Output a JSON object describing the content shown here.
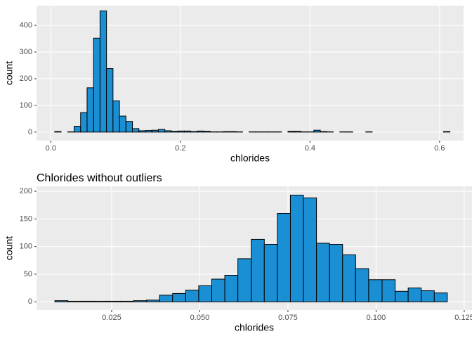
{
  "chart_data": [
    {
      "type": "histogram",
      "x_label": "chlorides",
      "y_label": "count",
      "color": "#1b8fd3",
      "edge_color": "#000000",
      "grid": true,
      "bins": [
        0.006,
        0.016,
        0.026,
        0.036,
        0.046,
        0.056,
        0.066,
        0.076,
        0.086,
        0.096,
        0.106,
        0.116,
        0.126,
        0.136,
        0.146,
        0.156,
        0.166,
        0.176,
        0.186,
        0.196,
        0.206,
        0.216,
        0.226,
        0.236,
        0.246,
        0.256,
        0.266,
        0.276,
        0.286,
        0.296,
        0.306,
        0.316,
        0.326,
        0.336,
        0.346,
        0.356,
        0.366,
        0.376,
        0.386,
        0.396,
        0.406,
        0.416,
        0.426,
        0.436,
        0.446,
        0.456,
        0.466,
        0.476,
        0.486,
        0.496,
        0.506,
        0.516,
        0.526,
        0.536,
        0.546,
        0.556,
        0.566,
        0.576,
        0.586,
        0.596,
        0.606,
        0.616
      ],
      "values": [
        2,
        0,
        1,
        22,
        73,
        166,
        352,
        454,
        238,
        117,
        60,
        40,
        13,
        5,
        6,
        7,
        10,
        5,
        3,
        4,
        4,
        2,
        4,
        3,
        1,
        1,
        2,
        2,
        1,
        0,
        1,
        1,
        1,
        1,
        1,
        0,
        3,
        3,
        1,
        1,
        7,
        2,
        1,
        0,
        1,
        1,
        0,
        0,
        1,
        0,
        0,
        0,
        0,
        0,
        0,
        0,
        0,
        0,
        0,
        0,
        2
      ],
      "xlim": [
        -0.022,
        0.637
      ],
      "ylim": [
        -32,
        474
      ],
      "xticks": [
        {
          "value": 0,
          "label": "0.0"
        },
        0.2,
        0.4,
        0.6
      ],
      "yticks": [
        0,
        100,
        200,
        300,
        400
      ]
    },
    {
      "type": "histogram",
      "title": "Chlorides without outliers",
      "x_label": "chlorides",
      "y_label": "count",
      "color": "#1b8fd3",
      "edge_color": "#000000",
      "grid": true,
      "bins": [
        0.0089,
        0.0126,
        0.0163,
        0.02,
        0.0237,
        0.0275,
        0.0312,
        0.0349,
        0.0386,
        0.0423,
        0.046,
        0.0497,
        0.0534,
        0.0571,
        0.0608,
        0.0646,
        0.0683,
        0.072,
        0.0757,
        0.0794,
        0.0831,
        0.0868,
        0.0905,
        0.0942,
        0.0979,
        0.1017,
        0.1054,
        0.1091,
        0.1128,
        0.1165,
        0.1202
      ],
      "values": [
        2,
        1,
        1,
        1,
        1,
        1,
        2,
        3,
        12,
        15,
        21,
        29,
        41,
        48,
        78,
        113,
        104,
        160,
        193,
        188,
        106,
        104,
        85,
        60,
        40,
        40,
        19,
        25,
        20,
        16
      ],
      "xlim": [
        0.0037,
        0.1272
      ],
      "ylim": [
        -15,
        209
      ],
      "xticks": [
        0.025,
        {
          "value": 0.05,
          "label": "0.050"
        },
        0.075,
        {
          "value": 0.1,
          "label": "0.100"
        },
        0.125
      ],
      "yticks": [
        0,
        50,
        100,
        150,
        200
      ]
    }
  ]
}
